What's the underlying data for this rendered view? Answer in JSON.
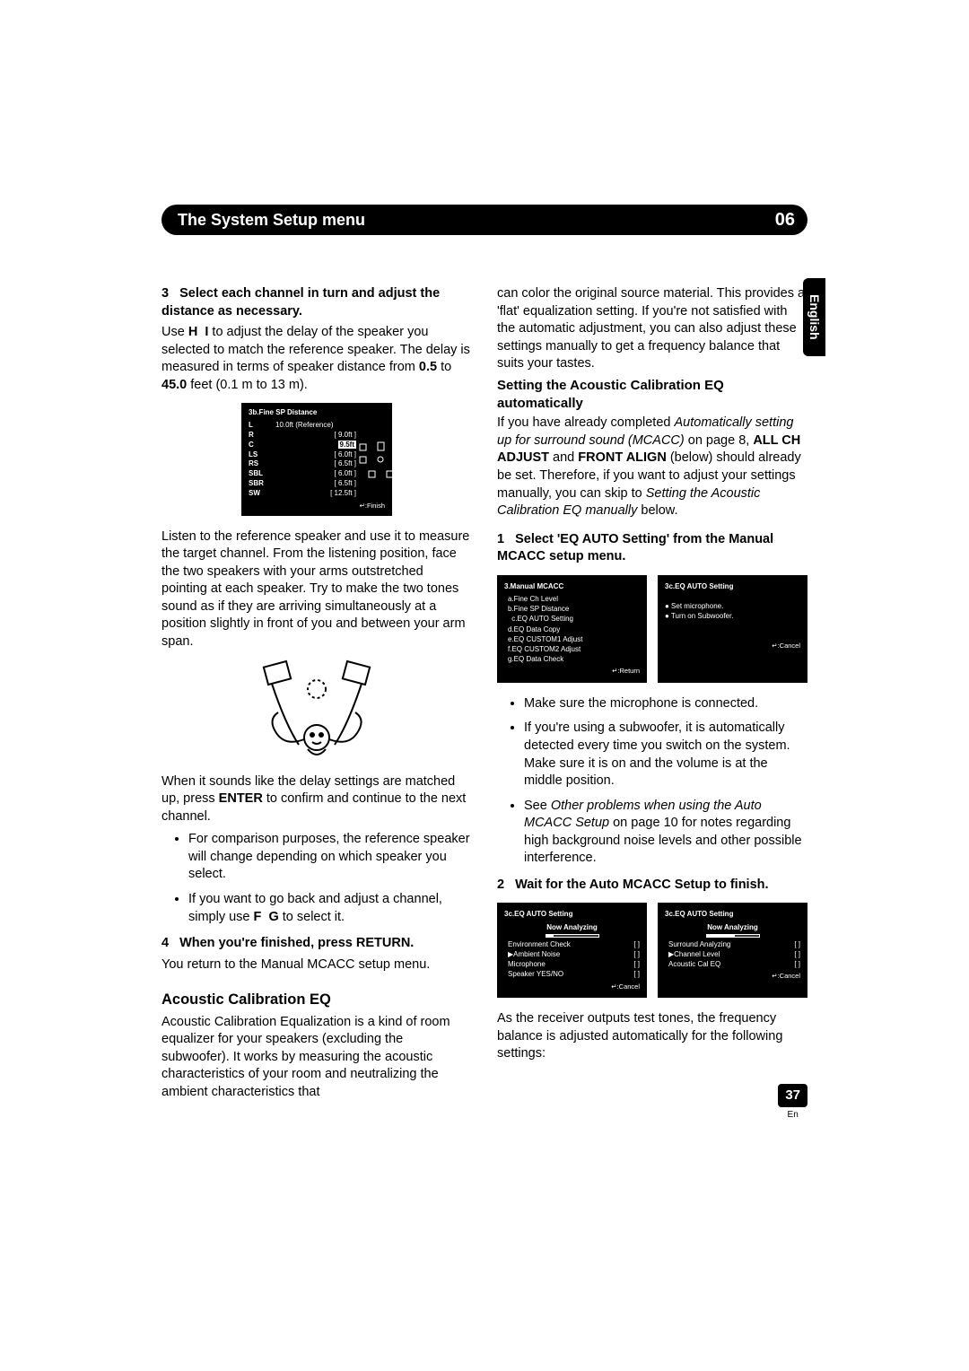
{
  "header": {
    "title": "The System Setup menu",
    "chapter": "06"
  },
  "sideTab": "English",
  "footer": {
    "page": "37",
    "lang": "En"
  },
  "left": {
    "step3": {
      "num": "3",
      "head": "Select each channel in turn and adjust the distance as necessary.",
      "p1a": "Use ",
      "p1b": " to adjust the delay of the speaker you selected to match the reference speaker. The delay is measured in terms of speaker distance from ",
      "k1": "H",
      "k2": "I",
      "b1": "0.5",
      "mid": " to ",
      "b2": "45.0",
      "p1c": " feet (0.1 m to 13 m)."
    },
    "lcd_sp": {
      "title": "3b.Fine  SP  Distance",
      "rows": [
        {
          "ch": "L",
          "val": "10.0ft",
          "note": "(Reference)"
        },
        {
          "ch": "R",
          "val": "9.0ft",
          "bracket": true
        },
        {
          "ch": "C",
          "val": "9.5ft",
          "bracket": true,
          "hl": true
        },
        {
          "ch": "LS",
          "val": "6.0ft",
          "bracket": true
        },
        {
          "ch": "RS",
          "val": "6.5ft",
          "bracket": true
        },
        {
          "ch": "SBL",
          "val": "6.0ft",
          "bracket": true
        },
        {
          "ch": "SBR",
          "val": "6.5ft",
          "bracket": true
        },
        {
          "ch": "SW",
          "val": "12.5ft",
          "bracket": true
        }
      ],
      "foot": "↵:Finish"
    },
    "listen": "Listen to the reference speaker and use it to measure the target channel. From the listening position, face the two speakers with your arms outstretched pointing at each speaker. Try to make the two tones sound as if they are arriving simultaneously at a position slightly in front of you and between your arm span.",
    "match_a": "When it sounds like the delay settings are matched up, press ",
    "match_b": "ENTER",
    "match_c": " to confirm and continue to the next channel.",
    "bullets1": [
      "For comparison purposes, the reference speaker will change depending on which speaker you select."
    ],
    "bullet2_a": "If you want to go back and adjust a channel, simply use ",
    "bullet2_k1": "F",
    "bullet2_k2": "G",
    "bullet2_b": " to select it.",
    "step4": {
      "num": "4",
      "head": "When you're finished, press RETURN.",
      "p": "You return to the Manual MCACC setup menu."
    },
    "h2": "Acoustic Calibration EQ",
    "p_ac": "Acoustic Calibration Equalization is a kind of room equalizer for your speakers (excluding the subwoofer). It works by measuring the acoustic characteristics of your room and neutralizing the ambient characteristics that"
  },
  "right": {
    "cont": "can color the original source material. This provides a 'flat' equalization setting. If you're not satisfied with the automatic adjustment, you can also adjust these settings manually to get a frequency balance that suits your tastes.",
    "sub_h": "Setting the Acoustic Calibration EQ automatically",
    "p_auto_a": "If you have already completed ",
    "p_auto_i1": "Automatically setting up for surround sound (MCACC)",
    "p_auto_b": " on page 8, ",
    "p_auto_b1": "ALL CH ADJUST",
    "p_auto_mid": " and ",
    "p_auto_b2": "FRONT ALIGN",
    "p_auto_c": " (below) should already be set. Therefore, if you want to adjust your settings manually, you can skip to ",
    "p_auto_i2": "Setting the Acoustic Calibration EQ manually",
    "p_auto_d": " below.",
    "step1": {
      "num": "1",
      "head": "Select 'EQ AUTO Setting' from the Manual MCACC setup menu."
    },
    "lcd_menu_l": {
      "title": "3.Manual MCACC",
      "items": [
        "a.Fine  Ch  Level",
        "b.Fine  SP  Distance",
        "c.EQ  AUTO  Setting",
        "d.EQ  Data  Copy",
        "e.EQ  CUSTOM1  Adjust",
        "f.EQ  CUSTOM2  Adjust",
        "g.EQ  Data  Check"
      ],
      "hl_index": 2,
      "foot": "↵:Return"
    },
    "lcd_menu_r": {
      "title": "3c.EQ  AUTO  Setting",
      "lines": [
        "●  Set  microphone.",
        "●  Turn  on  Subwoofer."
      ],
      "foot": "↵:Cancel"
    },
    "bullets2_a": "Make sure the microphone is connected.",
    "bullets2_b": "If you're using a subwoofer, it is automatically detected every time you switch on the system. Make sure it is on and the volume is at the middle position.",
    "bullets2_c_a": "See ",
    "bullets2_c_i": "Other problems when using the Auto MCACC Setup",
    "bullets2_c_b": " on page 10 for notes regarding high background noise levels and other possible interference.",
    "step2": {
      "num": "2",
      "head": "Wait for the Auto MCACC Setup to finish."
    },
    "lcd_an_l": {
      "title": "3c.EQ  AUTO  Setting",
      "sub": "Now  Analyzing",
      "items": [
        "Environment  Check",
        "▶Ambient  Noise",
        "Microphone",
        "Speaker  YES/NO"
      ],
      "foot": "↵:Cancel",
      "progress_pct": 15
    },
    "lcd_an_r": {
      "title": "3c.EQ  AUTO  Setting",
      "sub": "Now  Analyzing",
      "items": [
        "Surround  Analyzing",
        "▶Channel  Level",
        "Acoustic  Cal  EQ"
      ],
      "foot": "↵:Cancel",
      "progress_pct": 55
    },
    "p_out": "As the receiver outputs test tones, the frequency balance is adjusted automatically for the following settings:"
  }
}
